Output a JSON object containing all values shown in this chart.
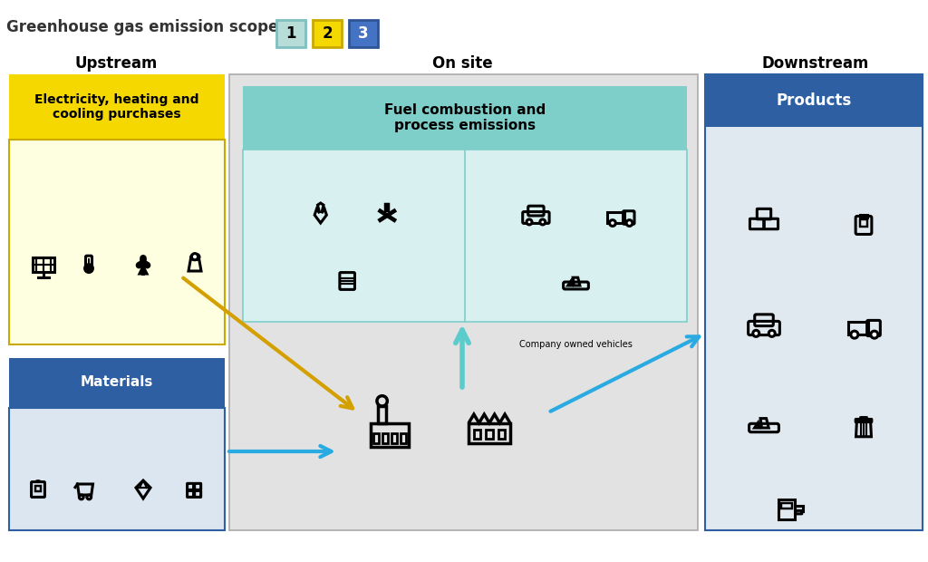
{
  "title_text": "Greenhouse gas emission scopes:",
  "scope_labels": [
    "1",
    "2",
    "3"
  ],
  "scope_bg": [
    "#b8ddd8",
    "#f5d800",
    "#4472c4"
  ],
  "scope_border": [
    "#7fbfbf",
    "#c9a800",
    "#2f5496"
  ],
  "scope_text_colors": [
    "black",
    "black",
    "white"
  ],
  "upstream_label": "Upstream",
  "onsite_label": "On site",
  "downstream_label": "Downstream",
  "elec_title": "Electricity, heating and\ncooling purchases",
  "elec_title_bg": "#f5d800",
  "elec_body_bg": "#fefee0",
  "elec_border": "#c9a800",
  "mat_title": "Materials",
  "mat_title_bg": "#2e5fa3",
  "mat_body_bg": "#dce6f1",
  "mat_border": "#2e5fa3",
  "onsite_bg": "#e2e2e2",
  "onsite_border": "#aaaaaa",
  "fuel_hdr_bg": "#7ececa",
  "fuel_inner_bg": "#d9f0f0",
  "fuel_border": "#7ececa",
  "fuel_label": "Fuel combustion and\nprocess emissions",
  "company_label": "Company owned vehicles",
  "ds_bg": "#e0e8f0",
  "ds_border": "#2e5fa3",
  "ds_title_bg": "#2e5fa3",
  "ds_title": "Products",
  "arrow_yellow": "#d4a000",
  "arrow_teal": "#5bcbcb",
  "arrow_blue": "#29abe2"
}
